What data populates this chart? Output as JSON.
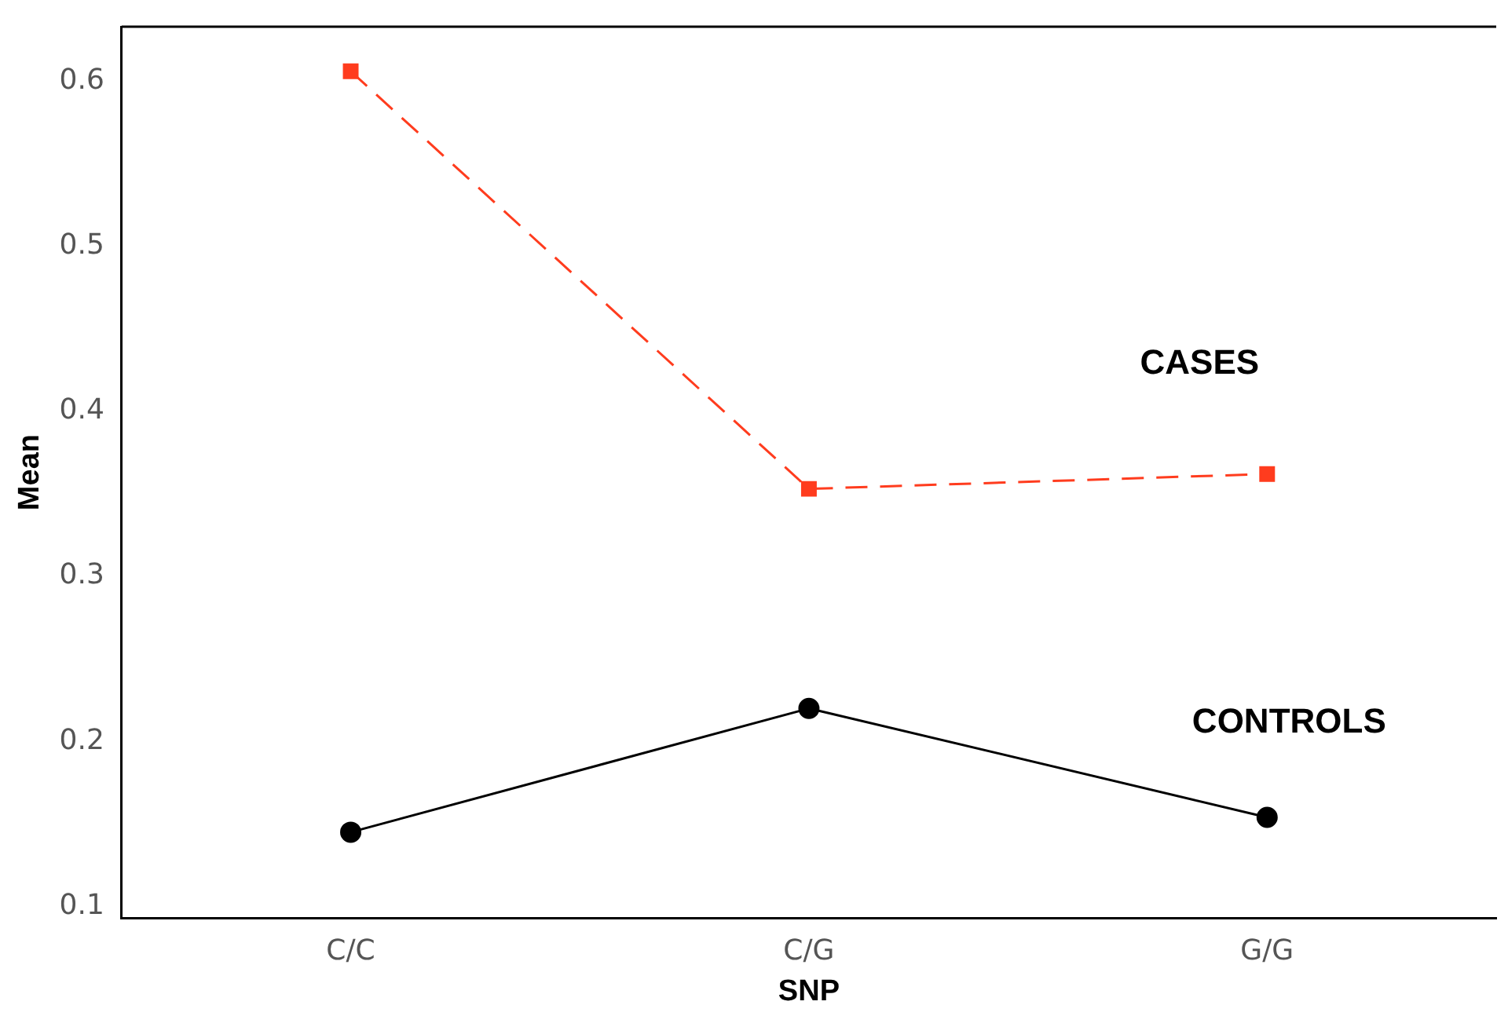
{
  "chart_data": {
    "type": "line",
    "xlabel": "SNP",
    "ylabel": "Mean",
    "categories": [
      "C/C",
      "C/G",
      "G/G"
    ],
    "series": [
      {
        "name": "CASES",
        "color": "#ff3c1e",
        "values": [
          0.606,
          0.353,
          0.362
        ],
        "marker": "square",
        "line_style": "dashed"
      },
      {
        "name": "CONTROLS",
        "color": "#000000",
        "values": [
          0.145,
          0.22,
          0.154
        ],
        "marker": "circle",
        "line_style": "solid"
      }
    ],
    "ylim": [
      0.093,
      0.633
    ],
    "yticks": [
      0.1,
      0.2,
      0.3,
      0.4,
      0.5,
      0.6
    ],
    "grid": false,
    "legend": false
  }
}
